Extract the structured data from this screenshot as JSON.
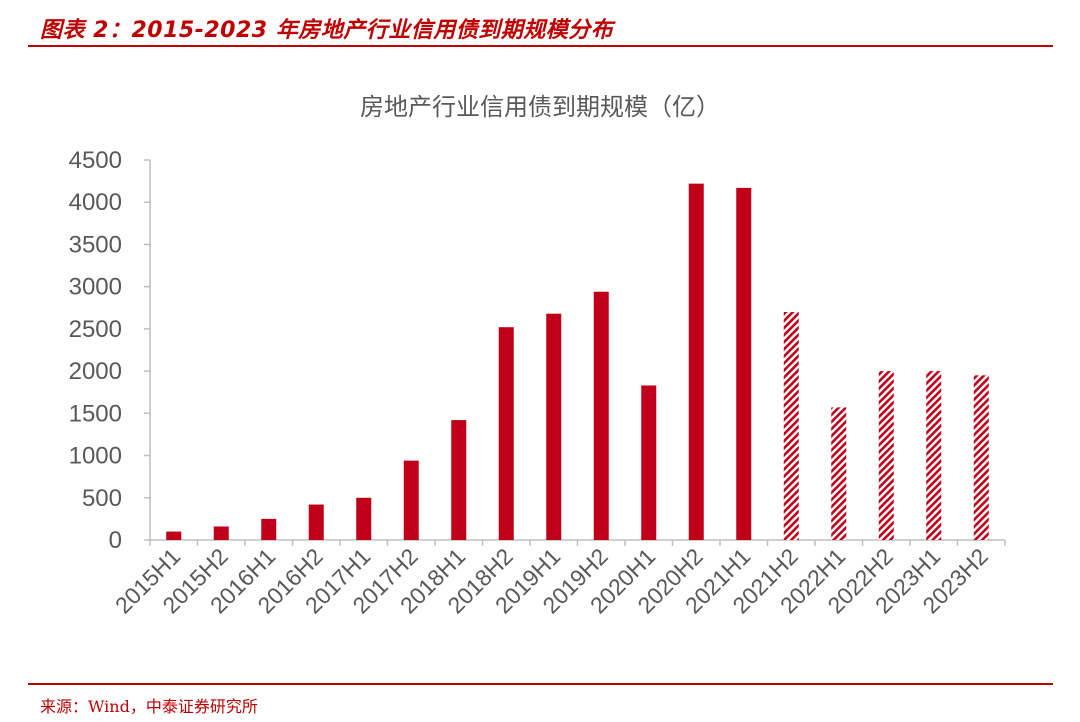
{
  "figure": {
    "title": "图表 2：2015-2023 年房地产行业信用债到期规模分布",
    "source": "来源：Wind，中泰证券研究所"
  },
  "chart_data": {
    "type": "bar",
    "title": "房地产行业信用债到期规模（亿）",
    "categories": [
      "2015H1",
      "2015H2",
      "2016H1",
      "2016H2",
      "2017H1",
      "2017H2",
      "2018H1",
      "2018H2",
      "2019H1",
      "2019H2",
      "2020H1",
      "2020H2",
      "2021H1",
      "2021H2",
      "2022H1",
      "2022H2",
      "2023H1",
      "2023H2"
    ],
    "values": [
      100,
      160,
      250,
      420,
      500,
      940,
      1420,
      2520,
      2680,
      2940,
      1830,
      4220,
      4170,
      2700,
      1570,
      2000,
      2000,
      1950
    ],
    "bar_style": [
      "solid",
      "solid",
      "solid",
      "solid",
      "solid",
      "solid",
      "solid",
      "solid",
      "solid",
      "solid",
      "solid",
      "solid",
      "solid",
      "hatched",
      "hatched",
      "hatched",
      "hatched",
      "hatched"
    ],
    "ylim": [
      0,
      4500
    ],
    "yticks": [
      0,
      500,
      1000,
      1500,
      2000,
      2500,
      3000,
      3500,
      4000,
      4500
    ],
    "xlabel": "",
    "ylabel": "",
    "grid": false,
    "colors": {
      "bar": "#c00018",
      "axis": "#bfbfbf",
      "text": "#595959"
    }
  }
}
